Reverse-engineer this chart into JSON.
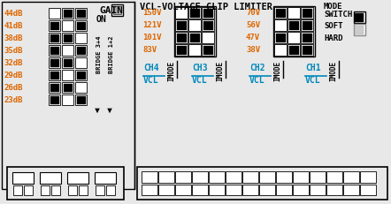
{
  "bg_color": "#e8e8e8",
  "text_color_orange": "#dd6600",
  "text_color_black": "#000000",
  "text_color_cyan": "#0088bb",
  "gain_labels": [
    "44dB",
    "41dB",
    "38dB",
    "35dB",
    "32dB",
    "29dB",
    "26dB",
    "23dB"
  ],
  "vcl_left_labels": [
    "150V",
    "121V",
    "101V",
    "83V"
  ],
  "vcl_right_labels": [
    "70V",
    "56V",
    "47V",
    "38V"
  ],
  "channel_labels": [
    "CH4",
    "CH3",
    "CH2",
    "CH1"
  ],
  "title": "VCL-VOLTAGE CLIP LIMITER",
  "gain_title": "GAIN",
  "on_label": "ON",
  "bridge_label_1": "BRIDGE 3+4",
  "bridge_label_2": "BRIDGE 1+2",
  "vcl_label": "VCL",
  "imode_label": "IMODE",
  "mode_label": "MODE",
  "switch_label": "SWITCH",
  "soft_label": "SOFT",
  "hard_label": "HARD",
  "gain_pattern": [
    [
      false,
      true,
      true
    ],
    [
      true,
      false,
      true
    ],
    [
      true,
      true,
      false
    ],
    [
      true,
      false,
      true
    ],
    [
      true,
      true,
      false
    ],
    [
      true,
      false,
      true
    ],
    [
      true,
      true,
      false
    ],
    [
      true,
      false,
      true
    ]
  ],
  "vcl_left_pattern": [
    [
      false,
      true,
      true
    ],
    [
      true,
      false,
      true
    ],
    [
      true,
      true,
      false
    ],
    [
      true,
      false,
      true
    ]
  ],
  "vcl_right_pattern": [
    [
      true,
      false,
      true
    ],
    [
      false,
      true,
      true
    ],
    [
      true,
      false,
      true
    ],
    [
      false,
      true,
      true
    ]
  ]
}
